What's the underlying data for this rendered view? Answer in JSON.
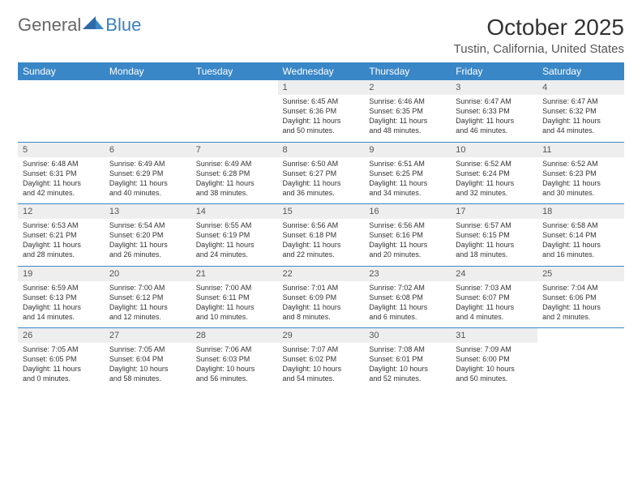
{
  "brand": {
    "part1": "General",
    "part2": "Blue"
  },
  "title": "October 2025",
  "location": "Tustin, California, United States",
  "colors": {
    "header_bg": "#3a87c7",
    "header_fg": "#ffffff",
    "daynum_bg": "#eeeeee",
    "rule": "#3a87c7",
    "text": "#333333",
    "logo_gray": "#666666",
    "logo_blue": "#3a7fc4"
  },
  "fonts": {
    "title_size_pt": 28,
    "location_size_pt": 15,
    "header_size_pt": 12,
    "daynum_size_pt": 11,
    "body_size_pt": 9
  },
  "day_headers": [
    "Sunday",
    "Monday",
    "Tuesday",
    "Wednesday",
    "Thursday",
    "Friday",
    "Saturday"
  ],
  "weeks": [
    [
      null,
      null,
      null,
      {
        "n": "1",
        "sr": "Sunrise: 6:45 AM",
        "ss": "Sunset: 6:36 PM",
        "d1": "Daylight: 11 hours",
        "d2": "and 50 minutes."
      },
      {
        "n": "2",
        "sr": "Sunrise: 6:46 AM",
        "ss": "Sunset: 6:35 PM",
        "d1": "Daylight: 11 hours",
        "d2": "and 48 minutes."
      },
      {
        "n": "3",
        "sr": "Sunrise: 6:47 AM",
        "ss": "Sunset: 6:33 PM",
        "d1": "Daylight: 11 hours",
        "d2": "and 46 minutes."
      },
      {
        "n": "4",
        "sr": "Sunrise: 6:47 AM",
        "ss": "Sunset: 6:32 PM",
        "d1": "Daylight: 11 hours",
        "d2": "and 44 minutes."
      }
    ],
    [
      {
        "n": "5",
        "sr": "Sunrise: 6:48 AM",
        "ss": "Sunset: 6:31 PM",
        "d1": "Daylight: 11 hours",
        "d2": "and 42 minutes."
      },
      {
        "n": "6",
        "sr": "Sunrise: 6:49 AM",
        "ss": "Sunset: 6:29 PM",
        "d1": "Daylight: 11 hours",
        "d2": "and 40 minutes."
      },
      {
        "n": "7",
        "sr": "Sunrise: 6:49 AM",
        "ss": "Sunset: 6:28 PM",
        "d1": "Daylight: 11 hours",
        "d2": "and 38 minutes."
      },
      {
        "n": "8",
        "sr": "Sunrise: 6:50 AM",
        "ss": "Sunset: 6:27 PM",
        "d1": "Daylight: 11 hours",
        "d2": "and 36 minutes."
      },
      {
        "n": "9",
        "sr": "Sunrise: 6:51 AM",
        "ss": "Sunset: 6:25 PM",
        "d1": "Daylight: 11 hours",
        "d2": "and 34 minutes."
      },
      {
        "n": "10",
        "sr": "Sunrise: 6:52 AM",
        "ss": "Sunset: 6:24 PM",
        "d1": "Daylight: 11 hours",
        "d2": "and 32 minutes."
      },
      {
        "n": "11",
        "sr": "Sunrise: 6:52 AM",
        "ss": "Sunset: 6:23 PM",
        "d1": "Daylight: 11 hours",
        "d2": "and 30 minutes."
      }
    ],
    [
      {
        "n": "12",
        "sr": "Sunrise: 6:53 AM",
        "ss": "Sunset: 6:21 PM",
        "d1": "Daylight: 11 hours",
        "d2": "and 28 minutes."
      },
      {
        "n": "13",
        "sr": "Sunrise: 6:54 AM",
        "ss": "Sunset: 6:20 PM",
        "d1": "Daylight: 11 hours",
        "d2": "and 26 minutes."
      },
      {
        "n": "14",
        "sr": "Sunrise: 6:55 AM",
        "ss": "Sunset: 6:19 PM",
        "d1": "Daylight: 11 hours",
        "d2": "and 24 minutes."
      },
      {
        "n": "15",
        "sr": "Sunrise: 6:56 AM",
        "ss": "Sunset: 6:18 PM",
        "d1": "Daylight: 11 hours",
        "d2": "and 22 minutes."
      },
      {
        "n": "16",
        "sr": "Sunrise: 6:56 AM",
        "ss": "Sunset: 6:16 PM",
        "d1": "Daylight: 11 hours",
        "d2": "and 20 minutes."
      },
      {
        "n": "17",
        "sr": "Sunrise: 6:57 AM",
        "ss": "Sunset: 6:15 PM",
        "d1": "Daylight: 11 hours",
        "d2": "and 18 minutes."
      },
      {
        "n": "18",
        "sr": "Sunrise: 6:58 AM",
        "ss": "Sunset: 6:14 PM",
        "d1": "Daylight: 11 hours",
        "d2": "and 16 minutes."
      }
    ],
    [
      {
        "n": "19",
        "sr": "Sunrise: 6:59 AM",
        "ss": "Sunset: 6:13 PM",
        "d1": "Daylight: 11 hours",
        "d2": "and 14 minutes."
      },
      {
        "n": "20",
        "sr": "Sunrise: 7:00 AM",
        "ss": "Sunset: 6:12 PM",
        "d1": "Daylight: 11 hours",
        "d2": "and 12 minutes."
      },
      {
        "n": "21",
        "sr": "Sunrise: 7:00 AM",
        "ss": "Sunset: 6:11 PM",
        "d1": "Daylight: 11 hours",
        "d2": "and 10 minutes."
      },
      {
        "n": "22",
        "sr": "Sunrise: 7:01 AM",
        "ss": "Sunset: 6:09 PM",
        "d1": "Daylight: 11 hours",
        "d2": "and 8 minutes."
      },
      {
        "n": "23",
        "sr": "Sunrise: 7:02 AM",
        "ss": "Sunset: 6:08 PM",
        "d1": "Daylight: 11 hours",
        "d2": "and 6 minutes."
      },
      {
        "n": "24",
        "sr": "Sunrise: 7:03 AM",
        "ss": "Sunset: 6:07 PM",
        "d1": "Daylight: 11 hours",
        "d2": "and 4 minutes."
      },
      {
        "n": "25",
        "sr": "Sunrise: 7:04 AM",
        "ss": "Sunset: 6:06 PM",
        "d1": "Daylight: 11 hours",
        "d2": "and 2 minutes."
      }
    ],
    [
      {
        "n": "26",
        "sr": "Sunrise: 7:05 AM",
        "ss": "Sunset: 6:05 PM",
        "d1": "Daylight: 11 hours",
        "d2": "and 0 minutes."
      },
      {
        "n": "27",
        "sr": "Sunrise: 7:05 AM",
        "ss": "Sunset: 6:04 PM",
        "d1": "Daylight: 10 hours",
        "d2": "and 58 minutes."
      },
      {
        "n": "28",
        "sr": "Sunrise: 7:06 AM",
        "ss": "Sunset: 6:03 PM",
        "d1": "Daylight: 10 hours",
        "d2": "and 56 minutes."
      },
      {
        "n": "29",
        "sr": "Sunrise: 7:07 AM",
        "ss": "Sunset: 6:02 PM",
        "d1": "Daylight: 10 hours",
        "d2": "and 54 minutes."
      },
      {
        "n": "30",
        "sr": "Sunrise: 7:08 AM",
        "ss": "Sunset: 6:01 PM",
        "d1": "Daylight: 10 hours",
        "d2": "and 52 minutes."
      },
      {
        "n": "31",
        "sr": "Sunrise: 7:09 AM",
        "ss": "Sunset: 6:00 PM",
        "d1": "Daylight: 10 hours",
        "d2": "and 50 minutes."
      },
      null
    ]
  ]
}
